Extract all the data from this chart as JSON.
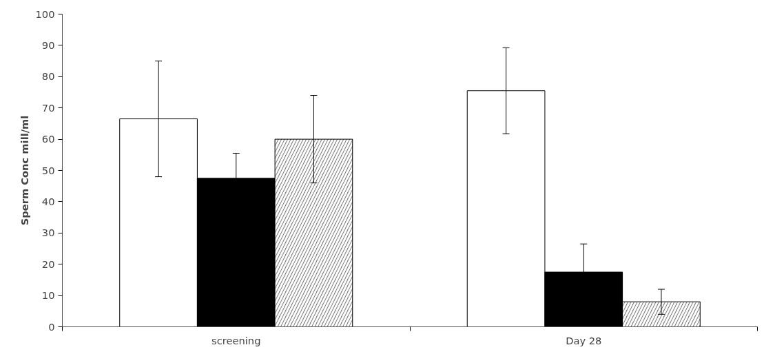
{
  "chart_data": {
    "type": "bar",
    "ylabel": "Sperm Conc mill/ml",
    "categories": [
      "screening",
      "Day 28"
    ],
    "series": [
      {
        "color": "#ffffff",
        "values": [
          66.5,
          75.5
        ],
        "errors": [
          18.5,
          13.75
        ]
      },
      {
        "color": "#000000",
        "values": [
          47.5,
          17.5
        ],
        "errors": [
          8,
          9
        ]
      },
      {
        "color": "#7f7f7f",
        "values": [
          60,
          8
        ],
        "errors": [
          14,
          4
        ]
      }
    ],
    "ylim": [
      0,
      100
    ],
    "yticks": [
      0,
      10,
      20,
      30,
      40,
      50,
      60,
      70,
      80,
      90,
      100
    ],
    "grid": false
  }
}
